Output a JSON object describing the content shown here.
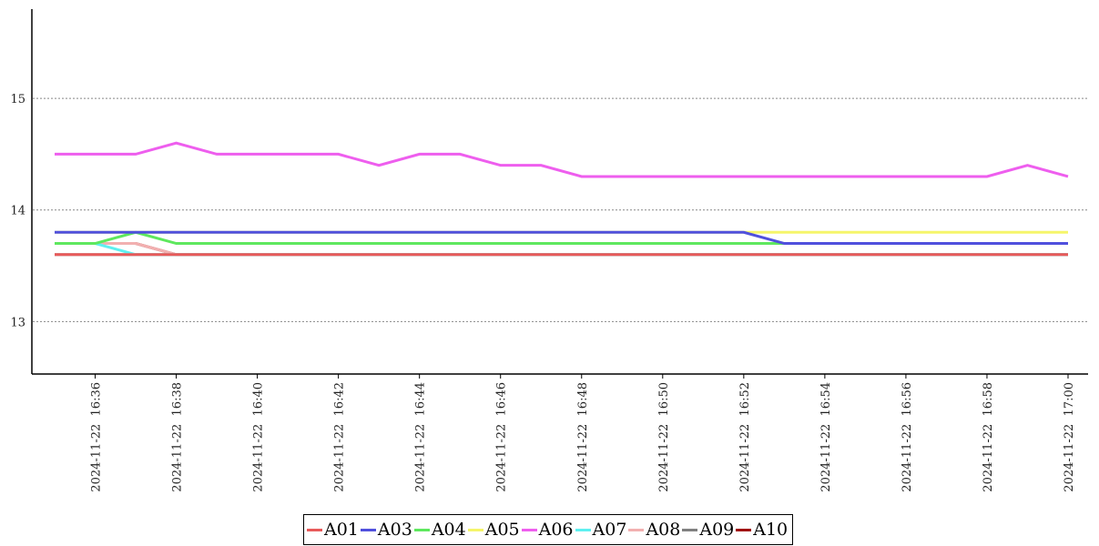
{
  "chart_data": {
    "type": "line",
    "categories": [
      null,
      "2024-11-22  16:36",
      null,
      "2024-11-22  16:38",
      null,
      "2024-11-22  16:40",
      null,
      "2024-11-22  16:42",
      null,
      "2024-11-22  16:44",
      null,
      "2024-11-22  16:46",
      null,
      "2024-11-22  16:48",
      null,
      "2024-11-22  16:50",
      null,
      "2024-11-22  16:52",
      null,
      "2024-11-22  16:54",
      null,
      "2024-11-22  16:56",
      null,
      "2024-11-22  16:58",
      null,
      "2024-11-22  17:00"
    ],
    "ylim": [
      12.53,
      15.8
    ],
    "yticks": [
      13,
      14,
      15
    ],
    "grid": true,
    "series": [
      {
        "name": "A01",
        "color": "#e85a5a",
        "values": [
          13.6,
          13.6,
          13.6,
          13.6,
          13.6,
          13.6,
          13.6,
          13.6,
          13.6,
          13.6,
          13.6,
          13.6,
          13.6,
          13.6,
          13.6,
          13.6,
          13.6,
          13.6,
          13.6,
          13.6,
          13.6,
          13.6,
          13.6,
          13.6,
          13.6,
          13.6
        ]
      },
      {
        "name": "A03",
        "color": "#5050dd",
        "values": [
          13.8,
          13.8,
          13.8,
          13.8,
          13.8,
          13.8,
          13.8,
          13.8,
          13.8,
          13.8,
          13.8,
          13.8,
          13.8,
          13.8,
          13.8,
          13.8,
          13.8,
          13.8,
          13.7,
          13.7,
          13.7,
          13.7,
          13.7,
          13.7,
          13.7,
          13.7
        ]
      },
      {
        "name": "A04",
        "color": "#5ee85e",
        "values": [
          13.7,
          13.7,
          13.8,
          13.7,
          13.7,
          13.7,
          13.7,
          13.7,
          13.7,
          13.7,
          13.7,
          13.7,
          13.7,
          13.7,
          13.7,
          13.7,
          13.7,
          13.7,
          13.7,
          13.7,
          13.7,
          13.7,
          13.7,
          13.7,
          13.7,
          13.7
        ]
      },
      {
        "name": "A05",
        "color": "#f5f56a",
        "values": [
          13.8,
          13.8,
          13.8,
          13.8,
          13.8,
          13.8,
          13.8,
          13.8,
          13.8,
          13.8,
          13.8,
          13.8,
          13.8,
          13.8,
          13.8,
          13.8,
          13.8,
          13.8,
          13.8,
          13.8,
          13.8,
          13.8,
          13.8,
          13.8,
          13.8,
          13.8
        ]
      },
      {
        "name": "A06",
        "color": "#ee5eee",
        "values": [
          14.5,
          14.5,
          14.5,
          14.6,
          14.5,
          14.5,
          14.5,
          14.5,
          14.4,
          14.5,
          14.5,
          14.4,
          14.4,
          14.3,
          14.3,
          14.3,
          14.3,
          14.3,
          14.3,
          14.3,
          14.3,
          14.3,
          14.3,
          14.3,
          14.4,
          14.3
        ]
      },
      {
        "name": "A07",
        "color": "#5ef0f0",
        "values": [
          13.7,
          13.7,
          13.6,
          13.6,
          13.6,
          13.6,
          13.6,
          13.6,
          13.6,
          13.6,
          13.6,
          13.6,
          13.6,
          13.6,
          13.6,
          13.6,
          13.6,
          13.6,
          13.6,
          13.6,
          13.6,
          13.6,
          13.6,
          13.6,
          13.6,
          13.6
        ]
      },
      {
        "name": "A08",
        "color": "#f2b0b0",
        "values": [
          13.7,
          13.7,
          13.7,
          13.6,
          13.6,
          13.6,
          13.6,
          13.6,
          13.6,
          13.6,
          13.6,
          13.6,
          13.6,
          13.6,
          13.6,
          13.6,
          13.6,
          13.6,
          13.6,
          13.6,
          13.6,
          13.6,
          13.6,
          13.6,
          13.6,
          13.6
        ]
      },
      {
        "name": "A09",
        "color": "#808080",
        "values": [
          13.6,
          13.6,
          13.6,
          13.6,
          13.6,
          13.6,
          13.6,
          13.6,
          13.6,
          13.6,
          13.6,
          13.6,
          13.6,
          13.6,
          13.6,
          13.6,
          13.6,
          13.6,
          13.6,
          13.6,
          13.6,
          13.6,
          13.6,
          13.6,
          13.6,
          13.6
        ]
      },
      {
        "name": "A10",
        "color": "#a01010",
        "values": [
          13.7,
          13.7,
          13.7,
          13.6,
          13.6,
          13.6,
          13.6,
          13.6,
          13.6,
          13.6,
          13.6,
          13.6,
          13.6,
          13.6,
          13.6,
          13.6,
          13.6,
          13.6,
          13.6,
          13.6,
          13.6,
          13.6,
          13.6,
          13.6,
          13.6,
          13.6
        ]
      }
    ]
  }
}
